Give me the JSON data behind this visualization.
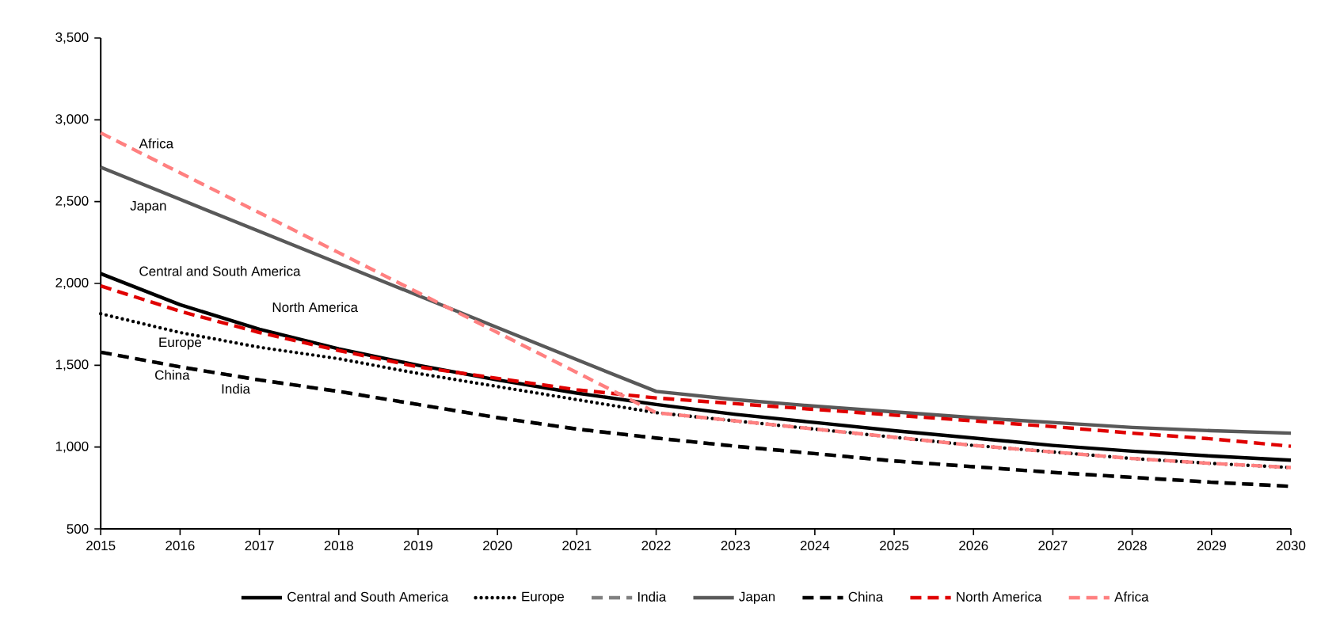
{
  "chart_data": {
    "type": "line",
    "x": [
      2015,
      2016,
      2017,
      2018,
      2019,
      2020,
      2021,
      2022,
      2023,
      2024,
      2025,
      2026,
      2027,
      2028,
      2029,
      2030
    ],
    "series": [
      {
        "name": "Central and South America",
        "color": "#000000",
        "line_style": "solid",
        "values": [
          2060,
          1870,
          1720,
          1600,
          1500,
          1410,
          1330,
          1260,
          1200,
          1150,
          1100,
          1055,
          1010,
          975,
          945,
          920
        ]
      },
      {
        "name": "Europe",
        "color": "#000000",
        "line_style": "dotted",
        "values": [
          1815,
          1700,
          1610,
          1540,
          1450,
          1370,
          1290,
          1210,
          1160,
          1110,
          1060,
          1010,
          970,
          930,
          900,
          875
        ]
      },
      {
        "name": "India",
        "color": "#808080",
        "line_style": "dashed",
        "values": [
          1580,
          1490,
          1410,
          1340,
          1260,
          1180,
          1110,
          1055,
          1005,
          960,
          915,
          880,
          845,
          815,
          785,
          760
        ]
      },
      {
        "name": "Japan",
        "color": "#595959",
        "line_style": "solid",
        "values": [
          2710,
          2514,
          2318,
          2122,
          1926,
          1730,
          1534,
          1340,
          1290,
          1250,
          1215,
          1180,
          1150,
          1120,
          1100,
          1085
        ]
      },
      {
        "name": "China",
        "color": "#000000",
        "line_style": "dashed",
        "values": [
          1580,
          1490,
          1410,
          1340,
          1260,
          1180,
          1110,
          1055,
          1005,
          960,
          915,
          880,
          845,
          815,
          785,
          760
        ]
      },
      {
        "name": "North America",
        "color": "#e00000",
        "line_style": "dashed",
        "values": [
          1985,
          1830,
          1700,
          1590,
          1490,
          1420,
          1350,
          1300,
          1265,
          1230,
          1195,
          1160,
          1125,
          1085,
          1050,
          1005
        ]
      },
      {
        "name": "Africa",
        "color": "#ff8080",
        "line_style": "dashed",
        "values": [
          2920,
          2676,
          2432,
          2188,
          1944,
          1700,
          1456,
          1210,
          1160,
          1110,
          1060,
          1010,
          970,
          930,
          900,
          875
        ]
      }
    ],
    "xlim": [
      2015,
      2030
    ],
    "xticks": [
      2015,
      2016,
      2017,
      2018,
      2019,
      2020,
      2021,
      2022,
      2023,
      2024,
      2025,
      2026,
      2027,
      2028,
      2029,
      2030
    ],
    "ylim": [
      500,
      3500
    ],
    "yticks": [
      {
        "value": 500,
        "label": "500"
      },
      {
        "value": 1000,
        "label": "1,000"
      },
      {
        "value": 1500,
        "label": "1,500"
      },
      {
        "value": 2000,
        "label": "2,000"
      },
      {
        "value": 2500,
        "label": "2,500"
      },
      {
        "value": 3000,
        "label": "3,000"
      },
      {
        "value": 3500,
        "label": "3,500"
      }
    ],
    "grid": false,
    "legend": "bottom"
  }
}
